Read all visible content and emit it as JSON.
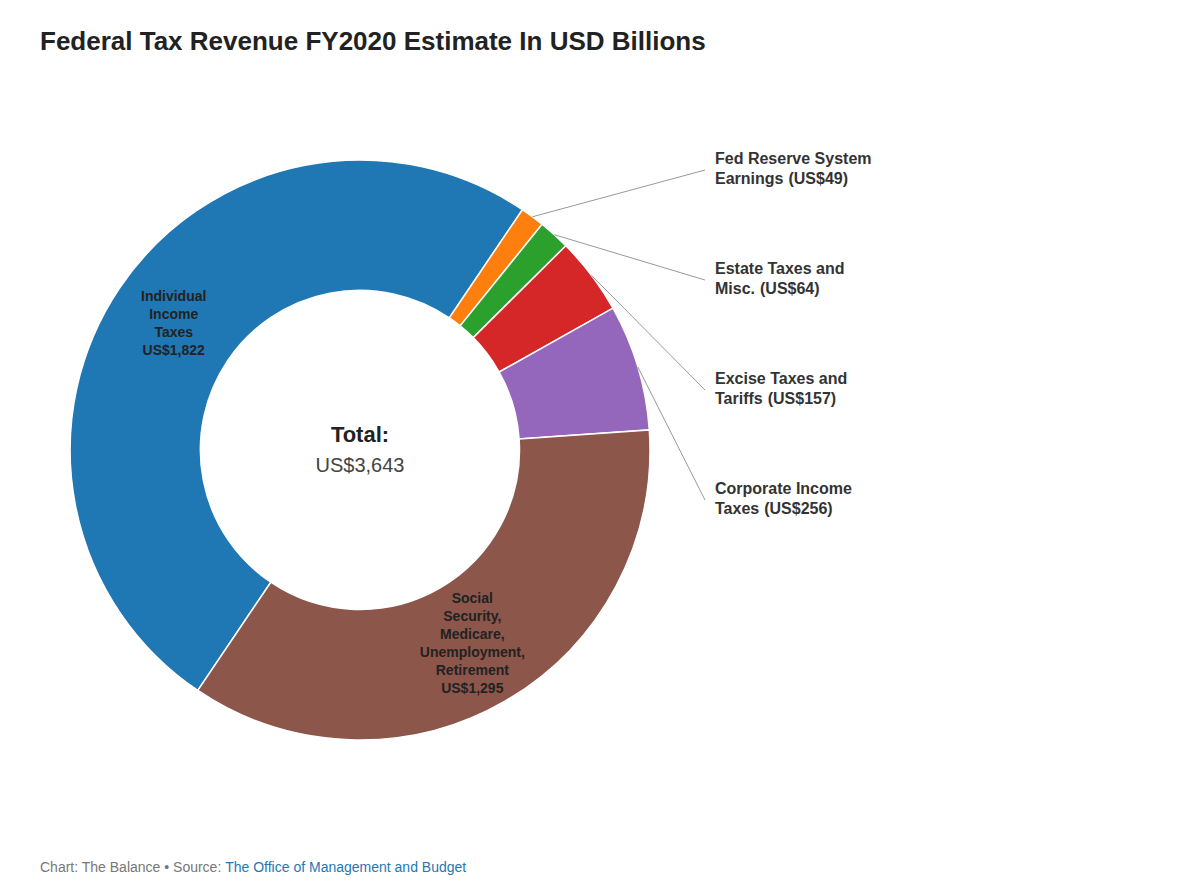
{
  "chart_data": {
    "type": "donut",
    "title": "Federal Tax Revenue FY2020 Estimate In USD Billions",
    "categories": [
      "Individual\nIncome\nTaxes",
      "Fed Reserve System\nEarnings",
      "Estate Taxes and\nMisc.",
      "Excise Taxes and\nTariffs",
      "Corporate Income\nTaxes",
      "Social\nSecurity,\nMedicare,\nUnemployment,\nRetirement"
    ],
    "values": [
      1822,
      49,
      64,
      157,
      256,
      1295
    ],
    "value_labels": [
      "US$1,822",
      "(US$49)",
      "(US$64)",
      "(US$157)",
      "(US$256)",
      "US$1,295"
    ],
    "data_labels": true,
    "annotations": {
      "center": [
        "Total:",
        "US$3,643"
      ],
      "footer": [
        "Chart: The Balance • Source: ",
        "The Office of Management and Budget"
      ]
    }
  }
}
